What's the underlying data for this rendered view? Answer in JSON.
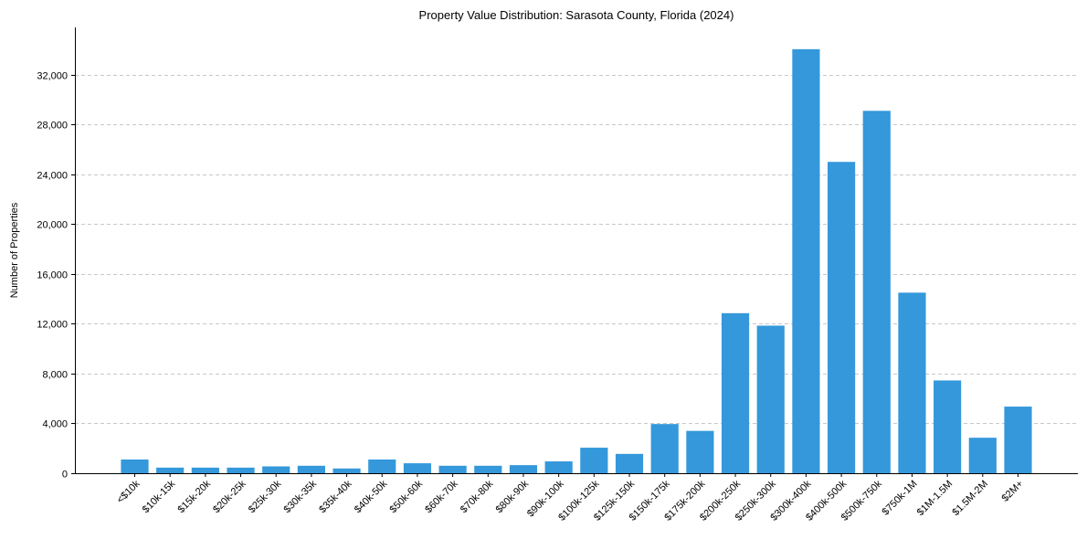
{
  "chart_data": {
    "type": "bar",
    "title": "Property Value Distribution: Sarasota County, Florida (2024)",
    "xlabel": "",
    "ylabel": "Number of Properties",
    "ylim": [
      0,
      35800
    ],
    "yticks": [
      0,
      4000,
      8000,
      12000,
      16000,
      20000,
      24000,
      28000,
      32000
    ],
    "ytick_labels": [
      "0",
      "4,000",
      "8,000",
      "12,000",
      "16,000",
      "20,000",
      "24,000",
      "28,000",
      "32,000"
    ],
    "grid": "y-dashed",
    "bar_color": "#3498db",
    "categories": [
      "<$10k",
      "$10k-15k",
      "$15k-20k",
      "$20k-25k",
      "$25k-30k",
      "$30k-35k",
      "$35k-40k",
      "$40k-50k",
      "$50k-60k",
      "$60k-70k",
      "$70k-80k",
      "$80k-90k",
      "$90k-100k",
      "$100k-125k",
      "$125k-150k",
      "$150k-175k",
      "$175k-200k",
      "$200k-250k",
      "$250k-300k",
      "$300k-400k",
      "$400k-500k",
      "$500k-750k",
      "$750k-1M",
      "$1M-1.5M",
      "$1.5M-2M",
      "$2M+"
    ],
    "values": [
      1100,
      450,
      450,
      450,
      550,
      600,
      380,
      1100,
      800,
      600,
      600,
      650,
      950,
      2050,
      1550,
      3950,
      3400,
      12850,
      11850,
      34050,
      25000,
      29100,
      14500,
      7450,
      2850,
      5350
    ]
  }
}
